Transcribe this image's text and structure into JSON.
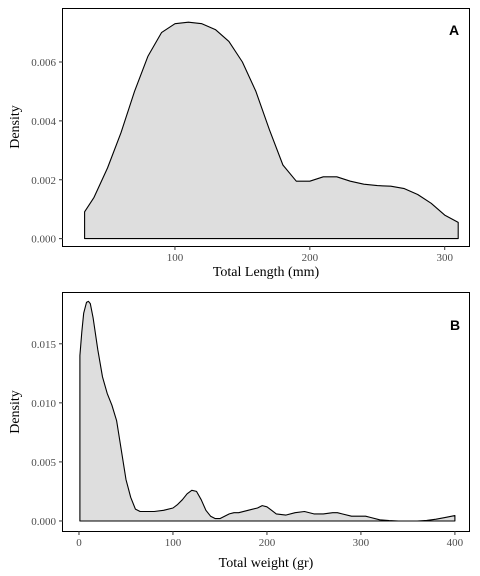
{
  "colors": {
    "fill": "#dedede",
    "line": "#000000",
    "frame": "#000000",
    "tick_text": "#4d4d4d"
  },
  "chart_data": [
    {
      "type": "area",
      "panel_label": "A",
      "xlabel": "Total Length (mm)",
      "ylabel": "Density",
      "xlim": [
        17,
        318
      ],
      "ylim": [
        -0.00025,
        0.0078
      ],
      "xticks": [
        100,
        200,
        300
      ],
      "yticks": [
        0.0,
        0.002,
        0.004,
        0.006
      ],
      "ytick_labels": [
        "0.000",
        "0.002",
        "0.004",
        "0.006"
      ],
      "grid": false,
      "x": [
        33,
        40,
        50,
        60,
        70,
        80,
        90,
        100,
        110,
        120,
        130,
        140,
        150,
        160,
        170,
        180,
        190,
        200,
        210,
        220,
        230,
        240,
        250,
        260,
        270,
        280,
        290,
        300,
        310
      ],
      "y": [
        0.00091,
        0.0014,
        0.0024,
        0.0036,
        0.005,
        0.0062,
        0.007,
        0.0073,
        0.00735,
        0.0073,
        0.0071,
        0.0067,
        0.006,
        0.005,
        0.0037,
        0.0025,
        0.00195,
        0.00195,
        0.0021,
        0.0021,
        0.00195,
        0.00185,
        0.0018,
        0.00178,
        0.0017,
        0.0015,
        0.0012,
        0.0008,
        0.00055
      ]
    },
    {
      "type": "area",
      "panel_label": "B",
      "xlabel": "Total weight (gr)",
      "ylabel": "Density",
      "xlim": [
        -17,
        415
      ],
      "ylim": [
        -0.00085,
        0.0193
      ],
      "xticks": [
        0,
        100,
        200,
        300,
        400
      ],
      "yticks": [
        0.0,
        0.005,
        0.01,
        0.015
      ],
      "ytick_labels": [
        "0.000",
        "0.005",
        "0.010",
        "0.015"
      ],
      "grid": false,
      "x": [
        1,
        3,
        5,
        8,
        10,
        12,
        15,
        20,
        25,
        30,
        35,
        40,
        45,
        50,
        55,
        60,
        65,
        70,
        80,
        90,
        100,
        105,
        110,
        115,
        120,
        125,
        130,
        135,
        140,
        145,
        150,
        155,
        160,
        165,
        170,
        180,
        190,
        195,
        200,
        205,
        210,
        220,
        230,
        240,
        250,
        260,
        270,
        275,
        280,
        290,
        300,
        305,
        310,
        320,
        330,
        340,
        350,
        360,
        370,
        380,
        390,
        400
      ],
      "y": [
        0.014,
        0.016,
        0.0176,
        0.0185,
        0.0186,
        0.0184,
        0.0172,
        0.0145,
        0.0122,
        0.0108,
        0.0098,
        0.0085,
        0.006,
        0.0035,
        0.002,
        0.001,
        0.0008,
        0.0008,
        0.0008,
        0.0009,
        0.0011,
        0.0014,
        0.0018,
        0.0023,
        0.0026,
        0.0025,
        0.0018,
        0.0009,
        0.0004,
        0.0002,
        0.0002,
        0.0004,
        0.0006,
        0.0007,
        0.0007,
        0.0009,
        0.0011,
        0.0013,
        0.0012,
        0.0009,
        0.0006,
        0.0005,
        0.0007,
        0.0008,
        0.0006,
        0.0006,
        0.0007,
        0.0007,
        0.0006,
        0.0004,
        0.0004,
        0.0004,
        0.0003,
        0.0001,
        3e-05,
        0.0,
        0.0,
        0.0,
        5e-05,
        0.00015,
        0.0003,
        0.00045
      ]
    }
  ]
}
